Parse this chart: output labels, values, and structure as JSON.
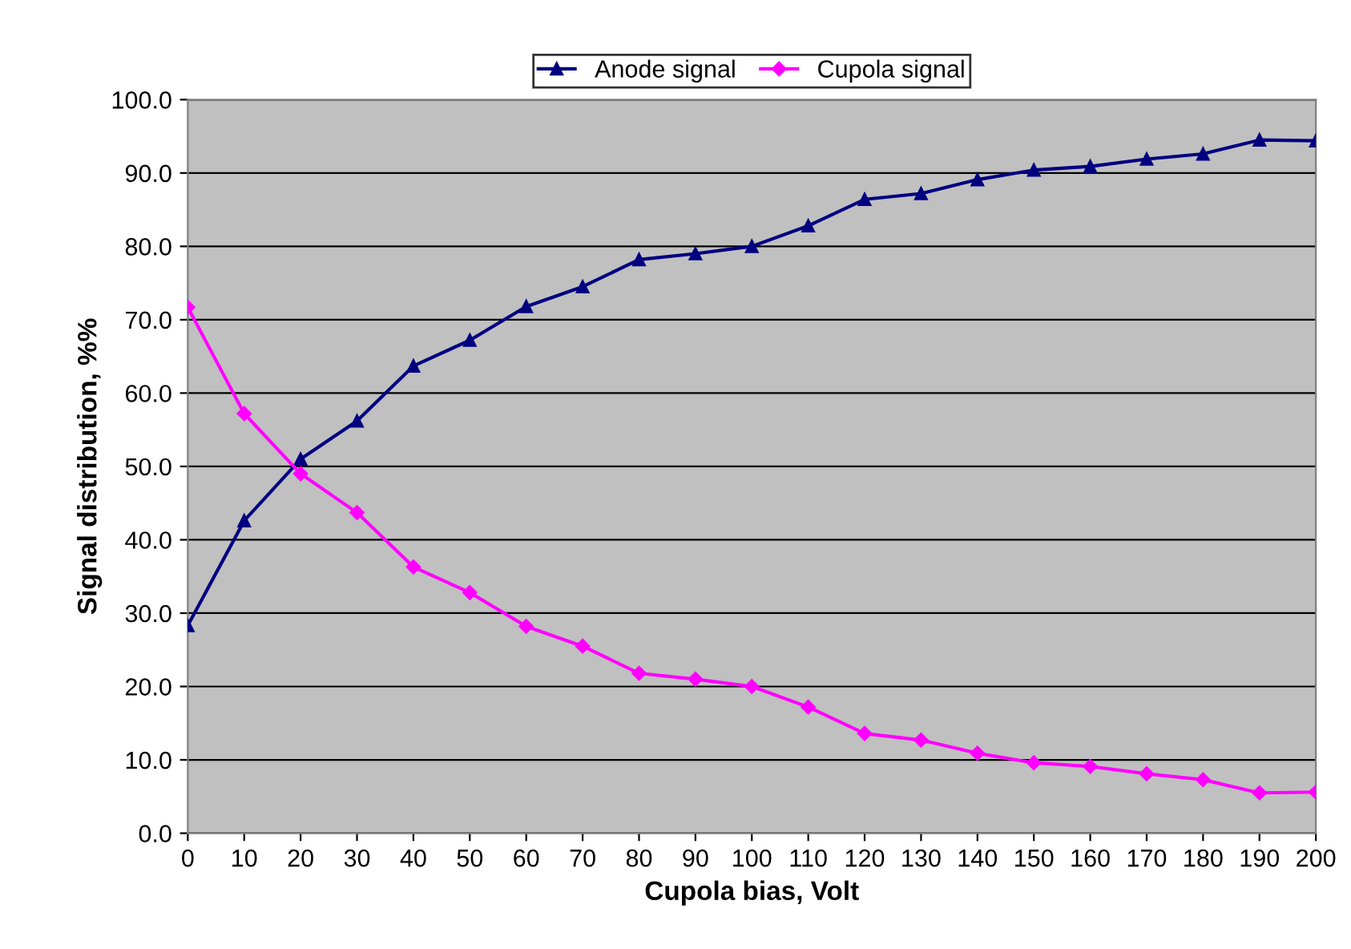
{
  "chart_data": {
    "type": "line",
    "xlabel": "Cupola bias, Volt",
    "ylabel": "Signal distribution, %%",
    "x": [
      0,
      10,
      20,
      30,
      40,
      50,
      60,
      70,
      80,
      90,
      100,
      110,
      120,
      130,
      140,
      150,
      160,
      170,
      180,
      190,
      200
    ],
    "series": [
      {
        "name": "Anode signal",
        "color": "#000080",
        "marker": "triangle",
        "values": [
          28.3,
          42.6,
          51.0,
          56.2,
          63.7,
          67.2,
          71.8,
          74.5,
          78.2,
          79.0,
          80.0,
          82.8,
          86.4,
          87.2,
          89.1,
          90.4,
          90.9,
          91.9,
          92.6,
          94.5,
          94.4
        ]
      },
      {
        "name": "Cupola signal",
        "color": "#ff00ff",
        "marker": "diamond",
        "values": [
          71.7,
          57.2,
          49.0,
          43.7,
          36.3,
          32.8,
          28.2,
          25.5,
          21.8,
          21.0,
          20.0,
          17.2,
          13.6,
          12.7,
          10.9,
          9.6,
          9.1,
          8.1,
          7.3,
          5.5,
          5.6
        ]
      }
    ],
    "xlim": [
      0,
      200
    ],
    "xticks": [
      0,
      10,
      20,
      30,
      40,
      50,
      60,
      70,
      80,
      90,
      100,
      110,
      120,
      130,
      140,
      150,
      160,
      170,
      180,
      190,
      200
    ],
    "ylim": [
      0,
      100
    ],
    "yticks": [
      {
        "value": 0,
        "label": "0.0"
      },
      {
        "value": 10,
        "label": "10.0"
      },
      {
        "value": 20,
        "label": "20.0"
      },
      {
        "value": 30,
        "label": "30.0"
      },
      {
        "value": 40,
        "label": "40.0"
      },
      {
        "value": 50,
        "label": "50.0"
      },
      {
        "value": 60,
        "label": "60.0"
      },
      {
        "value": 70,
        "label": "70.0"
      },
      {
        "value": 80,
        "label": "80.0"
      },
      {
        "value": 90,
        "label": "90.0"
      },
      {
        "value": 100,
        "label": "100.0"
      }
    ],
    "grid": "y",
    "legend": "top",
    "line_style": "solid"
  }
}
